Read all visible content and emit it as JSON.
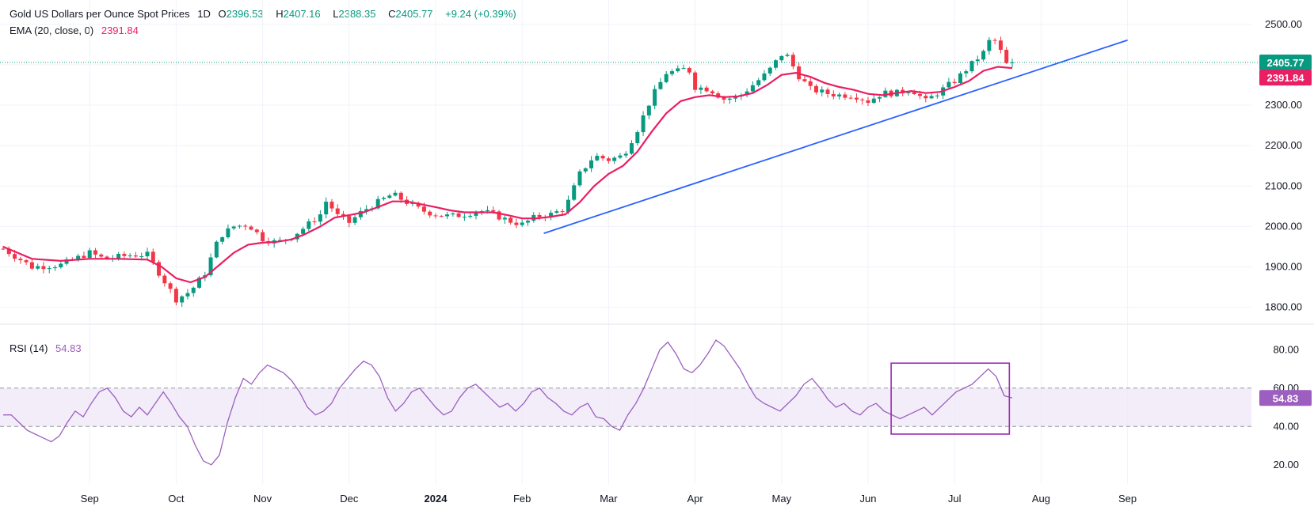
{
  "header": {
    "symbol": "Gold US Dollars per Ounce Spot Prices",
    "interval": "1D",
    "open_label": "O",
    "open": "2396.53",
    "high_label": "H",
    "high": "2407.16",
    "low_label": "L",
    "low": "2388.35",
    "close_label": "C",
    "close": "2405.77",
    "change": "+9.24 (+0.39%)"
  },
  "ema_legend": {
    "label": "EMA (20, close, 0)",
    "value": "2391.84"
  },
  "rsi_legend": {
    "label": "RSI (14)",
    "value": "54.83"
  },
  "colors": {
    "up": "#089981",
    "down": "#f23645",
    "ema": "#e91e63",
    "trendline": "#2962ff",
    "rsi": "#9c5fbf",
    "rsi_band": "#ede7f6",
    "highlight_box": "#9c27b0",
    "grid": "#f0f3fa"
  },
  "chart_data": [
    {
      "type": "candlestick",
      "title": "Gold US Dollars per Ounce Spot Prices, 1D",
      "x_labels": [
        "Sep",
        "Oct",
        "Nov",
        "Dec",
        "2024",
        "Feb",
        "Mar",
        "Apr",
        "May",
        "Jun",
        "Jul",
        "Aug",
        "Sep"
      ],
      "y_ticks": [
        "2500.00",
        "2400.00",
        "2300.00",
        "2200.00",
        "2100.00",
        "2000.00",
        "1900.00",
        "1800.00"
      ],
      "ylim": [
        1770,
        2525
      ],
      "last_price": "2405.77",
      "last_ema": "2391.84",
      "series": [
        {
          "name": "Price (approx. close path)",
          "anchors": [
            [
              0,
              1945
            ],
            [
              20,
              1900
            ],
            [
              40,
              1905
            ],
            [
              60,
              1935
            ],
            [
              70,
              1920
            ],
            [
              90,
              1930
            ],
            [
              100,
              1930
            ],
            [
              110,
              1875
            ],
            [
              120,
              1820
            ],
            [
              130,
              1840
            ],
            [
              140,
              1885
            ],
            [
              150,
              1975
            ],
            [
              160,
              2000
            ],
            [
              170,
              2005
            ],
            [
              180,
              1970
            ],
            [
              190,
              1960
            ],
            [
              200,
              1975
            ],
            [
              210,
              2000
            ],
            [
              220,
              2030
            ],
            [
              225,
              2070
            ],
            [
              230,
              2030
            ],
            [
              240,
              2010
            ],
            [
              250,
              2040
            ],
            [
              260,
              2060
            ],
            [
              270,
              2080
            ],
            [
              280,
              2060
            ],
            [
              290,
              2040
            ],
            [
              300,
              2030
            ],
            [
              310,
              2025
            ],
            [
              320,
              2030
            ],
            [
              330,
              2040
            ],
            [
              340,
              2030
            ],
            [
              350,
              2015
            ],
            [
              360,
              2005
            ],
            [
              370,
              2025
            ],
            [
              380,
              2030
            ],
            [
              390,
              2045
            ],
            [
              400,
              2130
            ],
            [
              410,
              2175
            ],
            [
              420,
              2165
            ],
            [
              430,
              2175
            ],
            [
              440,
              2240
            ],
            [
              450,
              2320
            ],
            [
              460,
              2380
            ],
            [
              470,
              2385
            ],
            [
              475,
              2395
            ],
            [
              480,
              2345
            ],
            [
              490,
              2340
            ],
            [
              500,
              2315
            ],
            [
              510,
              2320
            ],
            [
              520,
              2350
            ],
            [
              530,
              2380
            ],
            [
              540,
              2425
            ],
            [
              545,
              2420
            ],
            [
              550,
              2380
            ],
            [
              560,
              2340
            ],
            [
              570,
              2330
            ],
            [
              580,
              2325
            ],
            [
              590,
              2325
            ],
            [
              600,
              2310
            ],
            [
              610,
              2330
            ],
            [
              620,
              2330
            ],
            [
              630,
              2340
            ],
            [
              640,
              2310
            ],
            [
              650,
              2335
            ],
            [
              660,
              2360
            ],
            [
              670,
              2395
            ],
            [
              680,
              2430
            ],
            [
              685,
              2465
            ],
            [
              690,
              2455
            ],
            [
              695,
              2400
            ],
            [
              700,
              2405.77
            ]
          ]
        },
        {
          "name": "EMA (20, close, 0)",
          "anchors": [
            [
              0,
              1950
            ],
            [
              20,
              1920
            ],
            [
              40,
              1915
            ],
            [
              60,
              1920
            ],
            [
              80,
              1920
            ],
            [
              100,
              1918
            ],
            [
              110,
              1900
            ],
            [
              120,
              1872
            ],
            [
              130,
              1862
            ],
            [
              140,
              1875
            ],
            [
              150,
              1905
            ],
            [
              160,
              1935
            ],
            [
              170,
              1955
            ],
            [
              180,
              1960
            ],
            [
              190,
              1962
            ],
            [
              200,
              1968
            ],
            [
              210,
              1982
            ],
            [
              220,
              2000
            ],
            [
              230,
              2022
            ],
            [
              240,
              2028
            ],
            [
              250,
              2035
            ],
            [
              260,
              2048
            ],
            [
              270,
              2062
            ],
            [
              280,
              2062
            ],
            [
              290,
              2055
            ],
            [
              300,
              2048
            ],
            [
              310,
              2040
            ],
            [
              320,
              2035
            ],
            [
              330,
              2035
            ],
            [
              340,
              2035
            ],
            [
              350,
              2028
            ],
            [
              360,
              2020
            ],
            [
              370,
              2020
            ],
            [
              380,
              2024
            ],
            [
              390,
              2030
            ],
            [
              400,
              2060
            ],
            [
              410,
              2100
            ],
            [
              420,
              2130
            ],
            [
              430,
              2150
            ],
            [
              440,
              2185
            ],
            [
              450,
              2235
            ],
            [
              460,
              2280
            ],
            [
              470,
              2310
            ],
            [
              480,
              2320
            ],
            [
              490,
              2325
            ],
            [
              500,
              2320
            ],
            [
              510,
              2322
            ],
            [
              520,
              2330
            ],
            [
              530,
              2350
            ],
            [
              540,
              2375
            ],
            [
              550,
              2380
            ],
            [
              560,
              2370
            ],
            [
              570,
              2355
            ],
            [
              580,
              2345
            ],
            [
              590,
              2338
            ],
            [
              600,
              2328
            ],
            [
              610,
              2325
            ],
            [
              620,
              2330
            ],
            [
              630,
              2335
            ],
            [
              640,
              2330
            ],
            [
              650,
              2333
            ],
            [
              660,
              2345
            ],
            [
              670,
              2360
            ],
            [
              680,
              2385
            ],
            [
              690,
              2395
            ],
            [
              700,
              2391.84
            ]
          ]
        },
        {
          "name": "Trendline",
          "anchors": [
            [
              375,
              1983
            ],
            [
              780,
              2461
            ]
          ]
        }
      ]
    },
    {
      "type": "line",
      "title": "RSI (14)",
      "y_ticks": [
        "80.00",
        "60.00",
        "40.00",
        "20.00"
      ],
      "ylim": [
        10,
        90
      ],
      "band": [
        40,
        60
      ],
      "last_value": "54.83",
      "series": [
        {
          "name": "RSI",
          "values": [
            46,
            46,
            42,
            38,
            36,
            34,
            32,
            35,
            42,
            48,
            45,
            52,
            58,
            60,
            55,
            48,
            45,
            50,
            46,
            52,
            58,
            52,
            45,
            40,
            30,
            22,
            20,
            25,
            42,
            55,
            65,
            62,
            68,
            72,
            70,
            68,
            64,
            58,
            50,
            46,
            48,
            52,
            60,
            65,
            70,
            74,
            72,
            66,
            55,
            48,
            52,
            58,
            60,
            55,
            50,
            46,
            48,
            55,
            60,
            62,
            58,
            54,
            50,
            52,
            48,
            52,
            58,
            60,
            55,
            52,
            48,
            46,
            50,
            52,
            45,
            44,
            40,
            38,
            46,
            52,
            60,
            70,
            80,
            84,
            78,
            70,
            68,
            72,
            78,
            85,
            82,
            76,
            70,
            62,
            55,
            52,
            50,
            48,
            52,
            56,
            62,
            65,
            60,
            54,
            50,
            52,
            48,
            46,
            50,
            52,
            48,
            46,
            44,
            46,
            48,
            50,
            46,
            50,
            54,
            58,
            60,
            62,
            66,
            70,
            66,
            56,
            54.83
          ]
        },
        {
          "name": "Highlight box",
          "range_x": [
            616,
            698
          ],
          "range_y": [
            36,
            73
          ]
        }
      ]
    }
  ]
}
